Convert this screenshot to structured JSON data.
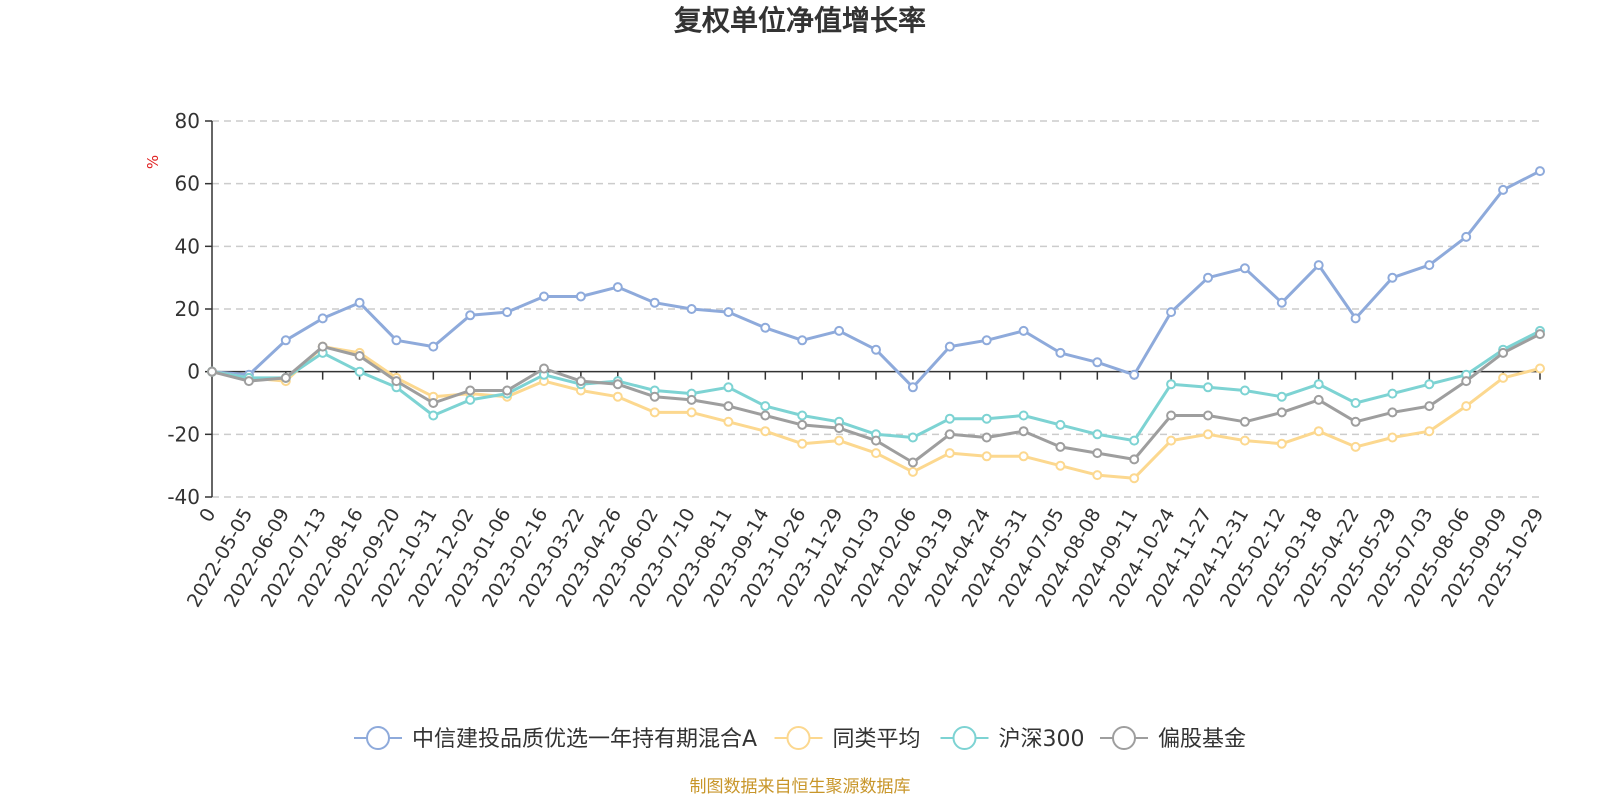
{
  "chart_data": {
    "type": "line",
    "title": "复权单位净值增长率",
    "ylabel": "%",
    "ylim": [
      -40,
      80
    ],
    "yticks": [
      80,
      60,
      40,
      20,
      0,
      -20,
      -40
    ],
    "x_origin_label": "0",
    "x": [
      "2022-05-05",
      "2022-06-09",
      "2022-07-13",
      "2022-08-16",
      "2022-09-20",
      "2022-10-31",
      "2022-12-02",
      "2023-01-06",
      "2023-02-16",
      "2023-03-22",
      "2023-04-26",
      "2023-06-02",
      "2023-07-10",
      "2023-08-11",
      "2023-09-14",
      "2023-10-26",
      "2023-11-29",
      "2024-01-03",
      "2024-02-06",
      "2024-03-19",
      "2024-04-24",
      "2024-05-31",
      "2024-07-05",
      "2024-08-08",
      "2024-09-11",
      "2024-10-24",
      "2024-11-27",
      "2024-12-31",
      "2025-02-12",
      "2025-03-18",
      "2025-04-22",
      "2025-05-29",
      "2025-07-03",
      "2025-08-06",
      "2025-09-09",
      "2025-10-29"
    ],
    "grid": true,
    "legend_position": "bottom",
    "series": [
      {
        "name": "中信建投品质优选一年持有期混合A",
        "color": "#8eaadb",
        "values": [
          -1,
          10,
          17,
          22,
          10,
          8,
          18,
          19,
          24,
          24,
          27,
          22,
          20,
          19,
          14,
          10,
          13,
          7,
          -5,
          8,
          10,
          13,
          6,
          3,
          -1,
          19,
          30,
          33,
          22,
          34,
          17,
          30,
          34,
          43,
          58,
          64
        ]
      },
      {
        "name": "同类平均",
        "color": "#fcd88f",
        "values": [
          -2,
          -3,
          8,
          6,
          -2,
          -8,
          -7,
          -8,
          -3,
          -6,
          -8,
          -13,
          -13,
          -16,
          -19,
          -23,
          -22,
          -26,
          -32,
          -26,
          -27,
          -27,
          -30,
          -33,
          -34,
          -22,
          -20,
          -22,
          -23,
          -19,
          -24,
          -21,
          -19,
          -11,
          -2,
          1
        ]
      },
      {
        "name": "沪深300",
        "color": "#7dd3d3",
        "values": [
          -2,
          -2,
          6,
          0,
          -5,
          -14,
          -9,
          -7,
          -1,
          -4,
          -3,
          -6,
          -7,
          -5,
          -11,
          -14,
          -16,
          -20,
          -21,
          -15,
          -15,
          -14,
          -17,
          -20,
          -22,
          -4,
          -5,
          -6,
          -8,
          -4,
          -10,
          -7,
          -4,
          -1,
          7,
          13
        ]
      },
      {
        "name": "偏股基金",
        "color": "#9e9e9e",
        "values": [
          -3,
          -2,
          8,
          5,
          -3,
          -10,
          -6,
          -6,
          1,
          -3,
          -4,
          -8,
          -9,
          -11,
          -14,
          -17,
          -18,
          -22,
          -29,
          -20,
          -21,
          -19,
          -24,
          -26,
          -28,
          -14,
          -14,
          -16,
          -13,
          -9,
          -16,
          -13,
          -11,
          -3,
          6,
          12
        ]
      }
    ]
  },
  "source_note": "制图数据来自恒生聚源数据库"
}
